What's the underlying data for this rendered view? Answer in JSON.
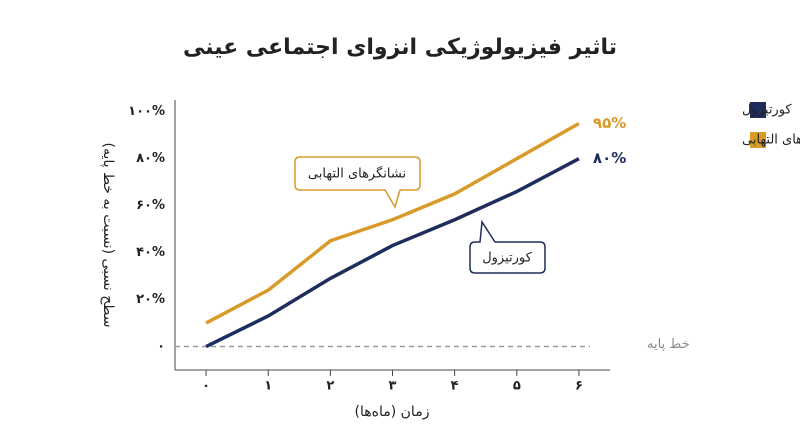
{
  "chart_data": {
    "type": "line",
    "title": "تاثیر فیزیولوژیکی انزوای اجتماعی عینی",
    "x_label": "زمان (ماه‌ها)",
    "y_label": "سطح نسبی (نسبت به خط پایه)",
    "x": [
      0,
      1,
      2,
      3,
      4,
      5,
      6
    ],
    "xlim": [
      -0.5,
      6.5
    ],
    "xticks": [
      {
        "value": 0,
        "label": "۰"
      },
      {
        "value": 1,
        "label": "۱"
      },
      {
        "value": 2,
        "label": "۲"
      },
      {
        "value": 3,
        "label": "۳"
      },
      {
        "value": 4,
        "label": "۴"
      },
      {
        "value": 5,
        "label": "۵"
      },
      {
        "value": 6,
        "label": "۶"
      }
    ],
    "ylim": [
      -10,
      105
    ],
    "yticks": [
      {
        "value": 0,
        "label": "۰"
      },
      {
        "value": 20,
        "label": "۲۰%"
      },
      {
        "value": 40,
        "label": "۴۰%"
      },
      {
        "value": 60,
        "label": "۶۰%"
      },
      {
        "value": 80,
        "label": "۸۰%"
      },
      {
        "value": 100,
        "label": "۱۰۰%"
      }
    ],
    "baseline": {
      "value": 0,
      "label": "خط پایه"
    },
    "series": [
      {
        "name": "کورتیزول",
        "color": "#1f2d5c",
        "values": [
          0,
          13,
          29,
          43,
          54,
          66,
          80
        ],
        "value_labels": [
          null,
          null,
          null,
          null,
          null,
          null,
          "۸۰%"
        ]
      },
      {
        "name": "نشانگرهای التهابی",
        "color": "#d89b2a",
        "values": [
          10,
          24,
          45,
          54,
          65,
          80,
          95
        ],
        "value_labels": [
          null,
          null,
          null,
          null,
          null,
          null,
          "۹۵%"
        ]
      }
    ],
    "annotations": [
      "نشانگرهای التهابی",
      "کورتیزول"
    ],
    "legend": "top-right"
  }
}
